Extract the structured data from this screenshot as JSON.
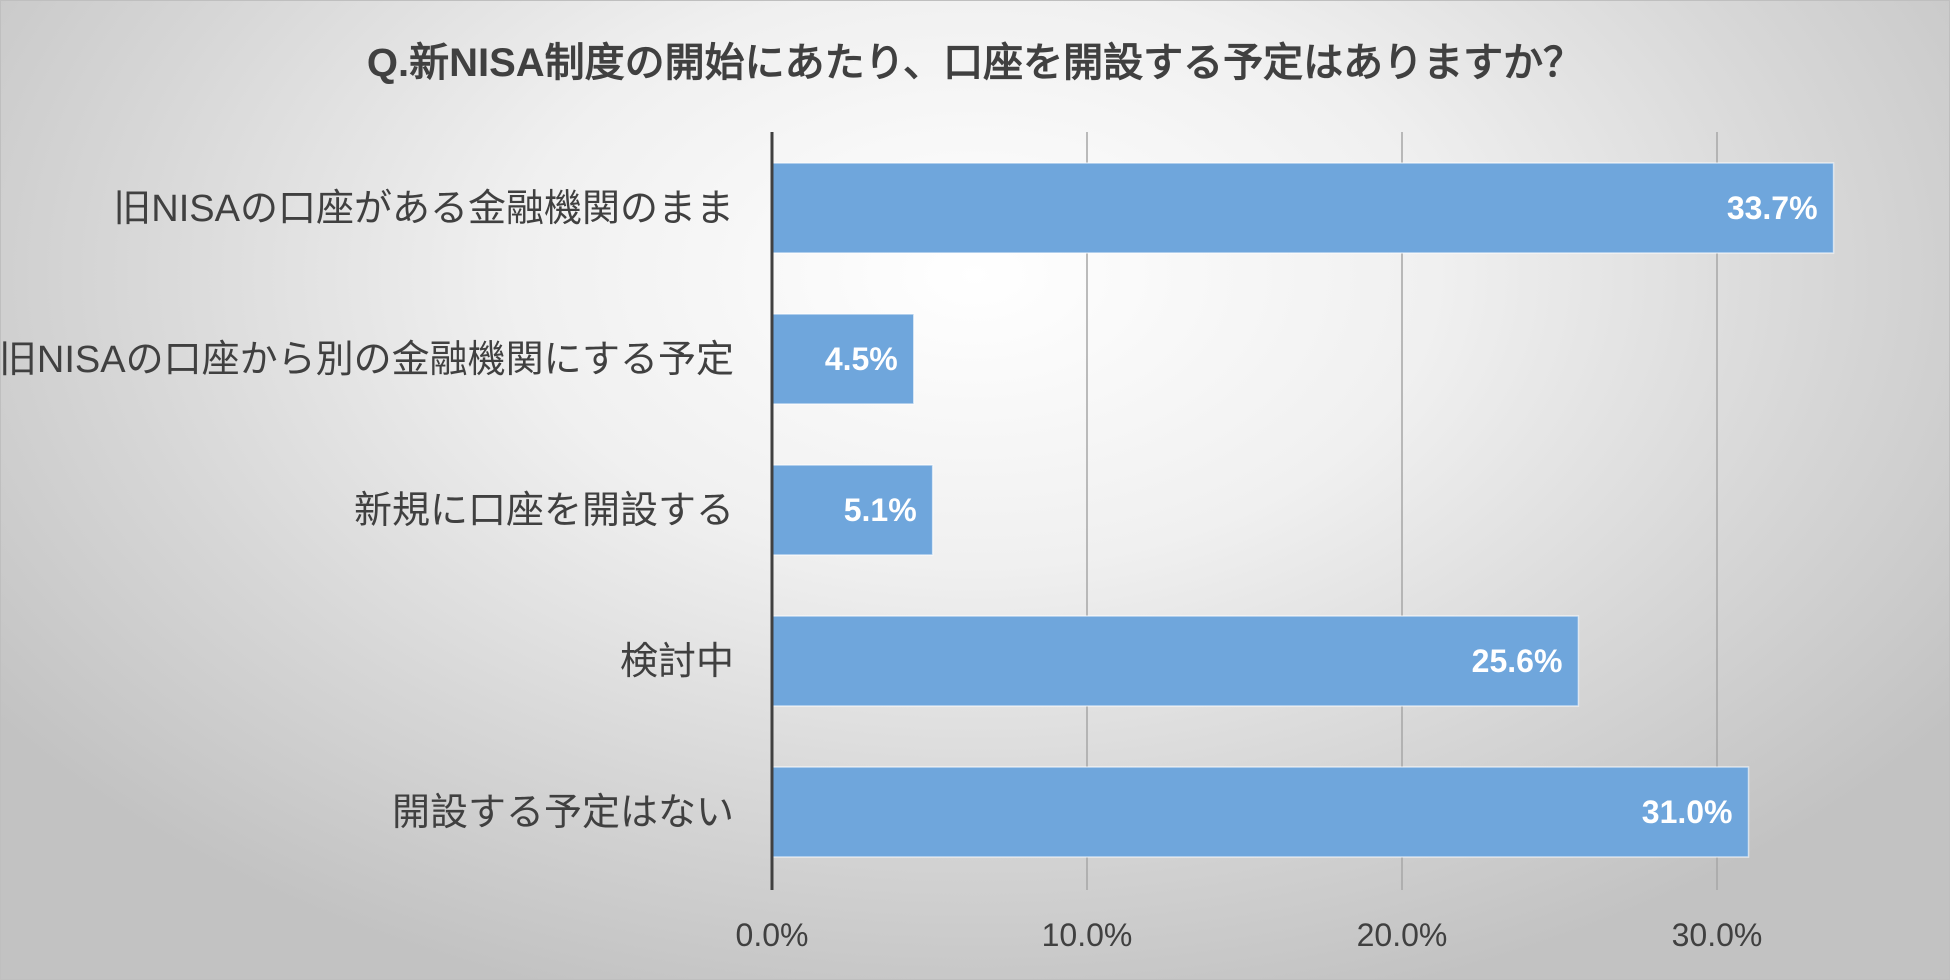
{
  "chart_data": {
    "type": "bar",
    "orientation": "horizontal",
    "title": "Q.新NISA制度の開始にあたり、口座を開設する予定はありますか？",
    "categories": [
      "旧NISAの口座がある金融機関のまま",
      "旧NISAの口座から別の金融機関にする予定",
      "新規に口座を開設する",
      "検討中",
      "開設する予定はない"
    ],
    "values": [
      33.7,
      4.5,
      5.1,
      25.6,
      31.0
    ],
    "value_labels": [
      "33.7%",
      "4.5%",
      "5.1%",
      "25.6%",
      "31.0%"
    ],
    "xlim": [
      0,
      35
    ],
    "xticks": [
      0,
      10,
      20,
      30
    ],
    "xtick_labels": [
      "0.0%",
      "10.0%",
      "20.0%",
      "30.0%"
    ],
    "grid": "vertical",
    "legend": "none",
    "bar_color": "#6fa6dc"
  }
}
